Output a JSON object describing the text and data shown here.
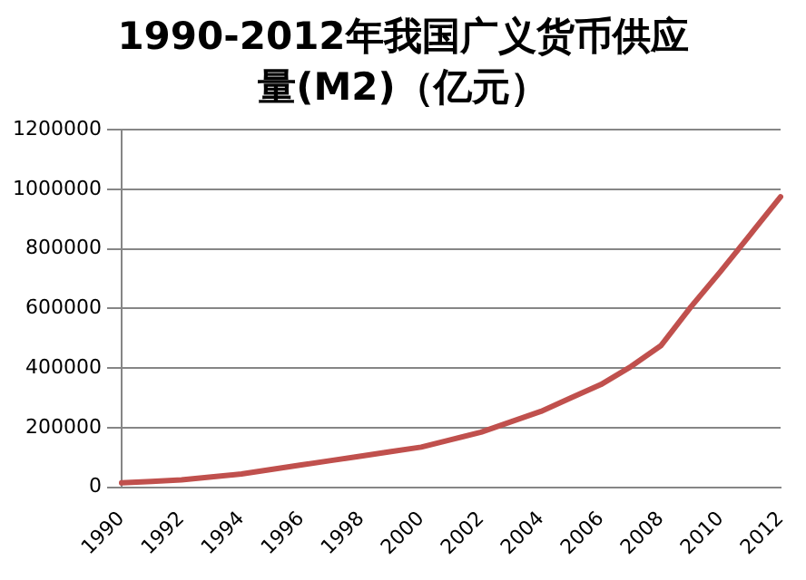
{
  "chart_data": {
    "type": "line",
    "title": "1990-2012年我国广义货币供应量(M2)（亿元）",
    "categories": [
      "1990",
      null,
      "1992",
      null,
      "1994",
      null,
      "1996",
      null,
      "1998",
      null,
      "2000",
      null,
      "2002",
      null,
      "2004",
      null,
      "2006",
      null,
      "2008",
      null,
      "2010",
      null,
      "2012"
    ],
    "series": [
      {
        "color": "#c0504d",
        "values": [
          15000,
          20000,
          25000,
          35000,
          45000,
          60000,
          75000,
          90000,
          105000,
          120000,
          135000,
          160000,
          185000,
          220000,
          255000,
          300000,
          345000,
          405000,
          475000,
          605000,
          725000,
          850000,
          975000
        ]
      }
    ],
    "ylim": [
      0,
      1200000
    ],
    "yticks": [
      0,
      200000,
      400000,
      600000,
      800000,
      1000000,
      1200000
    ],
    "grid": "y",
    "legend": false,
    "marker": "none",
    "line_style": "solid"
  }
}
